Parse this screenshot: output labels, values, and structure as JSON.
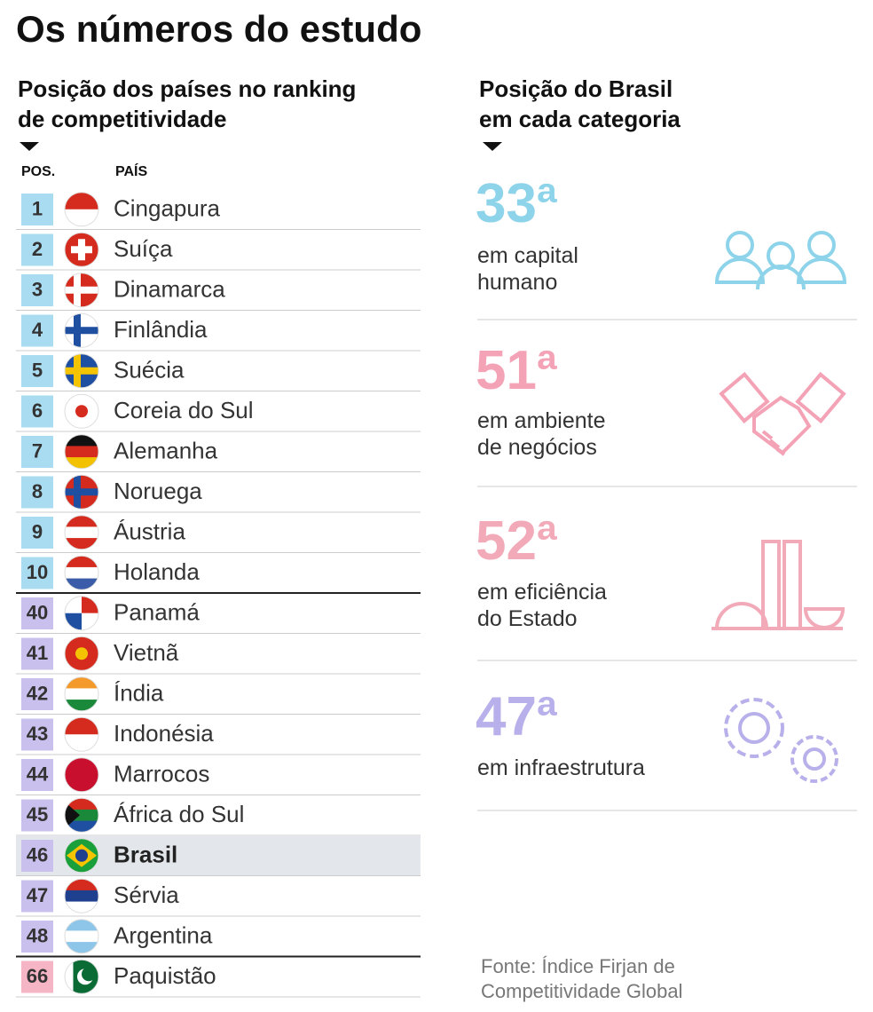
{
  "title": "Os números do estudo",
  "ranking": {
    "heading": [
      "Posição dos países no ranking",
      "de competitividade"
    ],
    "columns": [
      "POS.",
      "PAÍS"
    ],
    "rows": [
      {
        "position": "1",
        "country": "Cingapura"
      },
      {
        "position": "2",
        "country": "Suíça"
      },
      {
        "position": "3",
        "country": "Dinamarca"
      },
      {
        "position": "4",
        "country": "Finlândia"
      },
      {
        "position": "5",
        "country": "Suécia"
      },
      {
        "position": "6",
        "country": "Coreia do Sul"
      },
      {
        "position": "7",
        "country": "Alemanha"
      },
      {
        "position": "8",
        "country": "Noruega"
      },
      {
        "position": "9",
        "country": "Áustria"
      },
      {
        "position": "10",
        "country": "Holanda"
      },
      {
        "position": "40",
        "country": "Panamá"
      },
      {
        "position": "41",
        "country": "Vietnã"
      },
      {
        "position": "42",
        "country": "Índia"
      },
      {
        "position": "43",
        "country": "Indonésia"
      },
      {
        "position": "44",
        "country": "Marrocos"
      },
      {
        "position": "45",
        "country": "África do Sul"
      },
      {
        "position": "46",
        "country": "Brasil",
        "highlight": true
      },
      {
        "position": "47",
        "country": "Sérvia"
      },
      {
        "position": "48",
        "country": "Argentina"
      },
      {
        "position": "66",
        "country": "Paquistão"
      }
    ]
  },
  "brazil": {
    "heading": [
      "Posição do Brasil",
      "em cada categoria"
    ],
    "categories": [
      {
        "rank": "33ª",
        "label": [
          "em capital",
          "humano"
        ],
        "color": "#8dd3ea"
      },
      {
        "rank": "51ª",
        "label": [
          "em ambiente",
          "de negócios"
        ],
        "color": "#f4a3b6"
      },
      {
        "rank": "52ª",
        "label": [
          "em eficiência",
          "do Estado"
        ],
        "color": "#f2a9b8"
      },
      {
        "rank": "47ª",
        "label": [
          "em infraestrutura"
        ],
        "color": "#b8b0ea"
      }
    ]
  },
  "source": [
    "Fonte: Índice Firjan de",
    "Competitividade Global"
  ]
}
